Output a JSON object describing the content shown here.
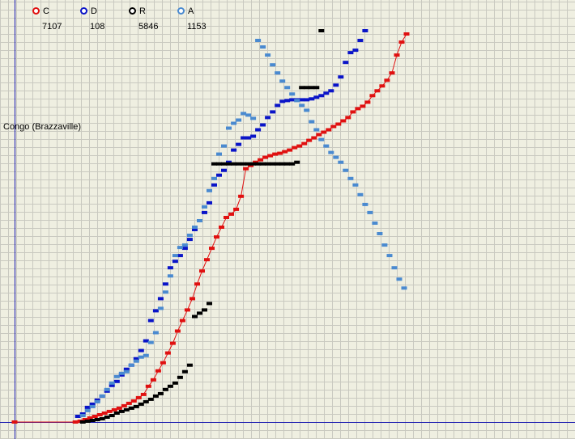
{
  "chart_data": {
    "type": "line",
    "title": "",
    "xlabel": "",
    "ylabel": "",
    "y_tick_label": "Congo (Brazzaville)",
    "grid": true,
    "legend_position": "top-left",
    "series": [
      {
        "name": "C",
        "count": "7107",
        "color": "#e01010",
        "points": [
          [
            0,
            0
          ],
          [
            25,
            0
          ],
          [
            27,
            1
          ],
          [
            29,
            3
          ],
          [
            31,
            5
          ],
          [
            33,
            7
          ],
          [
            35,
            9
          ],
          [
            37,
            11
          ],
          [
            39,
            13
          ],
          [
            41,
            15
          ],
          [
            43,
            17
          ],
          [
            45,
            20
          ],
          [
            47,
            23
          ],
          [
            49,
            26
          ],
          [
            51,
            30
          ],
          [
            53,
            34
          ],
          [
            55,
            44
          ],
          [
            57,
            52
          ],
          [
            59,
            63
          ],
          [
            61,
            73
          ],
          [
            63,
            85
          ],
          [
            65,
            97
          ],
          [
            67,
            112
          ],
          [
            69,
            125
          ],
          [
            71,
            138
          ],
          [
            73,
            152
          ],
          [
            75,
            170
          ],
          [
            77,
            186
          ],
          [
            79,
            200
          ],
          [
            81,
            214
          ],
          [
            83,
            228
          ],
          [
            85,
            240
          ],
          [
            87,
            252
          ],
          [
            89,
            256
          ],
          [
            91,
            262
          ],
          [
            93,
            278
          ],
          [
            95,
            312
          ],
          [
            97,
            316
          ],
          [
            99,
            320
          ],
          [
            101,
            323
          ],
          [
            103,
            326
          ],
          [
            105,
            328
          ],
          [
            107,
            330
          ],
          [
            109,
            331
          ],
          [
            111,
            333
          ],
          [
            113,
            335
          ],
          [
            115,
            338
          ],
          [
            117,
            340
          ],
          [
            119,
            343
          ],
          [
            121,
            347
          ],
          [
            123,
            350
          ],
          [
            125,
            354
          ],
          [
            127,
            357
          ],
          [
            129,
            360
          ],
          [
            131,
            364
          ],
          [
            133,
            367
          ],
          [
            135,
            371
          ],
          [
            137,
            375
          ],
          [
            139,
            382
          ],
          [
            141,
            386
          ],
          [
            143,
            389
          ],
          [
            145,
            394
          ],
          [
            147,
            402
          ],
          [
            149,
            408
          ],
          [
            151,
            414
          ],
          [
            153,
            421
          ],
          [
            155,
            430
          ],
          [
            157,
            452
          ],
          [
            159,
            468
          ],
          [
            161,
            478
          ]
        ]
      },
      {
        "name": "D",
        "count": "108",
        "color": "#0a14c8",
        "points": [
          [
            26,
            7
          ],
          [
            28,
            10
          ],
          [
            30,
            18
          ],
          [
            32,
            22
          ],
          [
            34,
            27
          ],
          [
            36,
            32
          ],
          [
            38,
            38
          ],
          [
            40,
            45
          ],
          [
            42,
            50
          ],
          [
            44,
            58
          ],
          [
            46,
            65
          ],
          [
            48,
            70
          ],
          [
            50,
            78
          ],
          [
            52,
            88
          ],
          [
            54,
            100
          ],
          [
            56,
            125
          ],
          [
            58,
            137
          ],
          [
            60,
            152
          ],
          [
            62,
            170
          ],
          [
            64,
            190
          ],
          [
            66,
            198
          ],
          [
            68,
            205
          ],
          [
            70,
            214
          ],
          [
            72,
            225
          ],
          [
            74,
            237
          ],
          [
            76,
            248
          ],
          [
            78,
            258
          ],
          [
            80,
            270
          ],
          [
            82,
            292
          ],
          [
            84,
            304
          ],
          [
            86,
            310
          ],
          [
            88,
            320
          ],
          [
            90,
            335
          ],
          [
            92,
            342
          ],
          [
            94,
            350
          ],
          [
            96,
            350
          ],
          [
            98,
            352
          ],
          [
            100,
            360
          ],
          [
            102,
            366
          ],
          [
            104,
            375
          ],
          [
            106,
            382
          ],
          [
            108,
            390
          ],
          [
            110,
            395
          ],
          [
            112,
            396
          ],
          [
            114,
            397
          ],
          [
            116,
            397
          ],
          [
            118,
            397
          ],
          [
            120,
            397
          ],
          [
            122,
            398
          ],
          [
            124,
            400
          ],
          [
            126,
            402
          ],
          [
            128,
            405
          ],
          [
            130,
            408
          ],
          [
            132,
            415
          ],
          [
            134,
            425
          ],
          [
            136,
            443
          ],
          [
            138,
            455
          ],
          [
            140,
            458
          ],
          [
            142,
            470
          ],
          [
            144,
            482
          ]
        ]
      },
      {
        "name": "R",
        "count": "5846",
        "color": "#000000",
        "points": [
          [
            28,
            0
          ],
          [
            30,
            1
          ],
          [
            32,
            2
          ],
          [
            34,
            3
          ],
          [
            36,
            4
          ],
          [
            38,
            6
          ],
          [
            40,
            8
          ],
          [
            42,
            11
          ],
          [
            44,
            13
          ],
          [
            46,
            15
          ],
          [
            48,
            17
          ],
          [
            50,
            19
          ],
          [
            52,
            22
          ],
          [
            54,
            25
          ],
          [
            56,
            28
          ],
          [
            58,
            32
          ],
          [
            60,
            35
          ],
          [
            62,
            40
          ],
          [
            64,
            44
          ],
          [
            66,
            48
          ],
          [
            68,
            55
          ],
          [
            70,
            62
          ],
          [
            72,
            70
          ],
          [
            74,
            130
          ],
          [
            76,
            134
          ],
          [
            78,
            138
          ],
          [
            80,
            146
          ],
          [
            82,
            318
          ],
          [
            84,
            318
          ],
          [
            86,
            318
          ],
          [
            88,
            318
          ],
          [
            90,
            318
          ],
          [
            92,
            318
          ],
          [
            94,
            318
          ],
          [
            96,
            318
          ],
          [
            98,
            318
          ],
          [
            100,
            318
          ],
          [
            102,
            318
          ],
          [
            104,
            318
          ],
          [
            106,
            318
          ],
          [
            108,
            318
          ],
          [
            110,
            318
          ],
          [
            112,
            318
          ],
          [
            114,
            318
          ],
          [
            116,
            320
          ],
          [
            118,
            412
          ],
          [
            120,
            412
          ],
          [
            122,
            412
          ],
          [
            124,
            412
          ],
          [
            126,
            482
          ]
        ]
      },
      {
        "name": "A",
        "count": "1153",
        "color": "#4a8ad0",
        "points": [
          [
            28,
            8
          ],
          [
            30,
            14
          ],
          [
            32,
            19
          ],
          [
            34,
            25
          ],
          [
            36,
            32
          ],
          [
            38,
            40
          ],
          [
            40,
            48
          ],
          [
            42,
            56
          ],
          [
            44,
            60
          ],
          [
            46,
            62
          ],
          [
            48,
            70
          ],
          [
            50,
            75
          ],
          [
            52,
            80
          ],
          [
            54,
            82
          ],
          [
            56,
            98
          ],
          [
            58,
            110
          ],
          [
            60,
            140
          ],
          [
            62,
            160
          ],
          [
            64,
            180
          ],
          [
            66,
            205
          ],
          [
            68,
            215
          ],
          [
            70,
            218
          ],
          [
            72,
            230
          ],
          [
            74,
            240
          ],
          [
            76,
            248
          ],
          [
            78,
            265
          ],
          [
            80,
            285
          ],
          [
            82,
            300
          ],
          [
            84,
            330
          ],
          [
            86,
            340
          ],
          [
            88,
            362
          ],
          [
            90,
            368
          ],
          [
            92,
            372
          ],
          [
            94,
            380
          ],
          [
            96,
            378
          ],
          [
            98,
            374
          ],
          [
            100,
            470
          ],
          [
            102,
            462
          ],
          [
            104,
            452
          ],
          [
            106,
            440
          ],
          [
            108,
            430
          ],
          [
            110,
            420
          ],
          [
            112,
            412
          ],
          [
            114,
            404
          ],
          [
            116,
            396
          ],
          [
            118,
            390
          ],
          [
            120,
            384
          ],
          [
            122,
            370
          ],
          [
            124,
            360
          ],
          [
            126,
            348
          ],
          [
            128,
            340
          ],
          [
            130,
            332
          ],
          [
            132,
            326
          ],
          [
            134,
            320
          ],
          [
            136,
            310
          ],
          [
            138,
            300
          ],
          [
            140,
            292
          ],
          [
            142,
            280
          ],
          [
            144,
            268
          ],
          [
            146,
            258
          ],
          [
            148,
            245
          ],
          [
            150,
            232
          ],
          [
            152,
            218
          ],
          [
            154,
            205
          ],
          [
            156,
            190
          ],
          [
            158,
            176
          ],
          [
            160,
            165
          ]
        ]
      }
    ]
  }
}
